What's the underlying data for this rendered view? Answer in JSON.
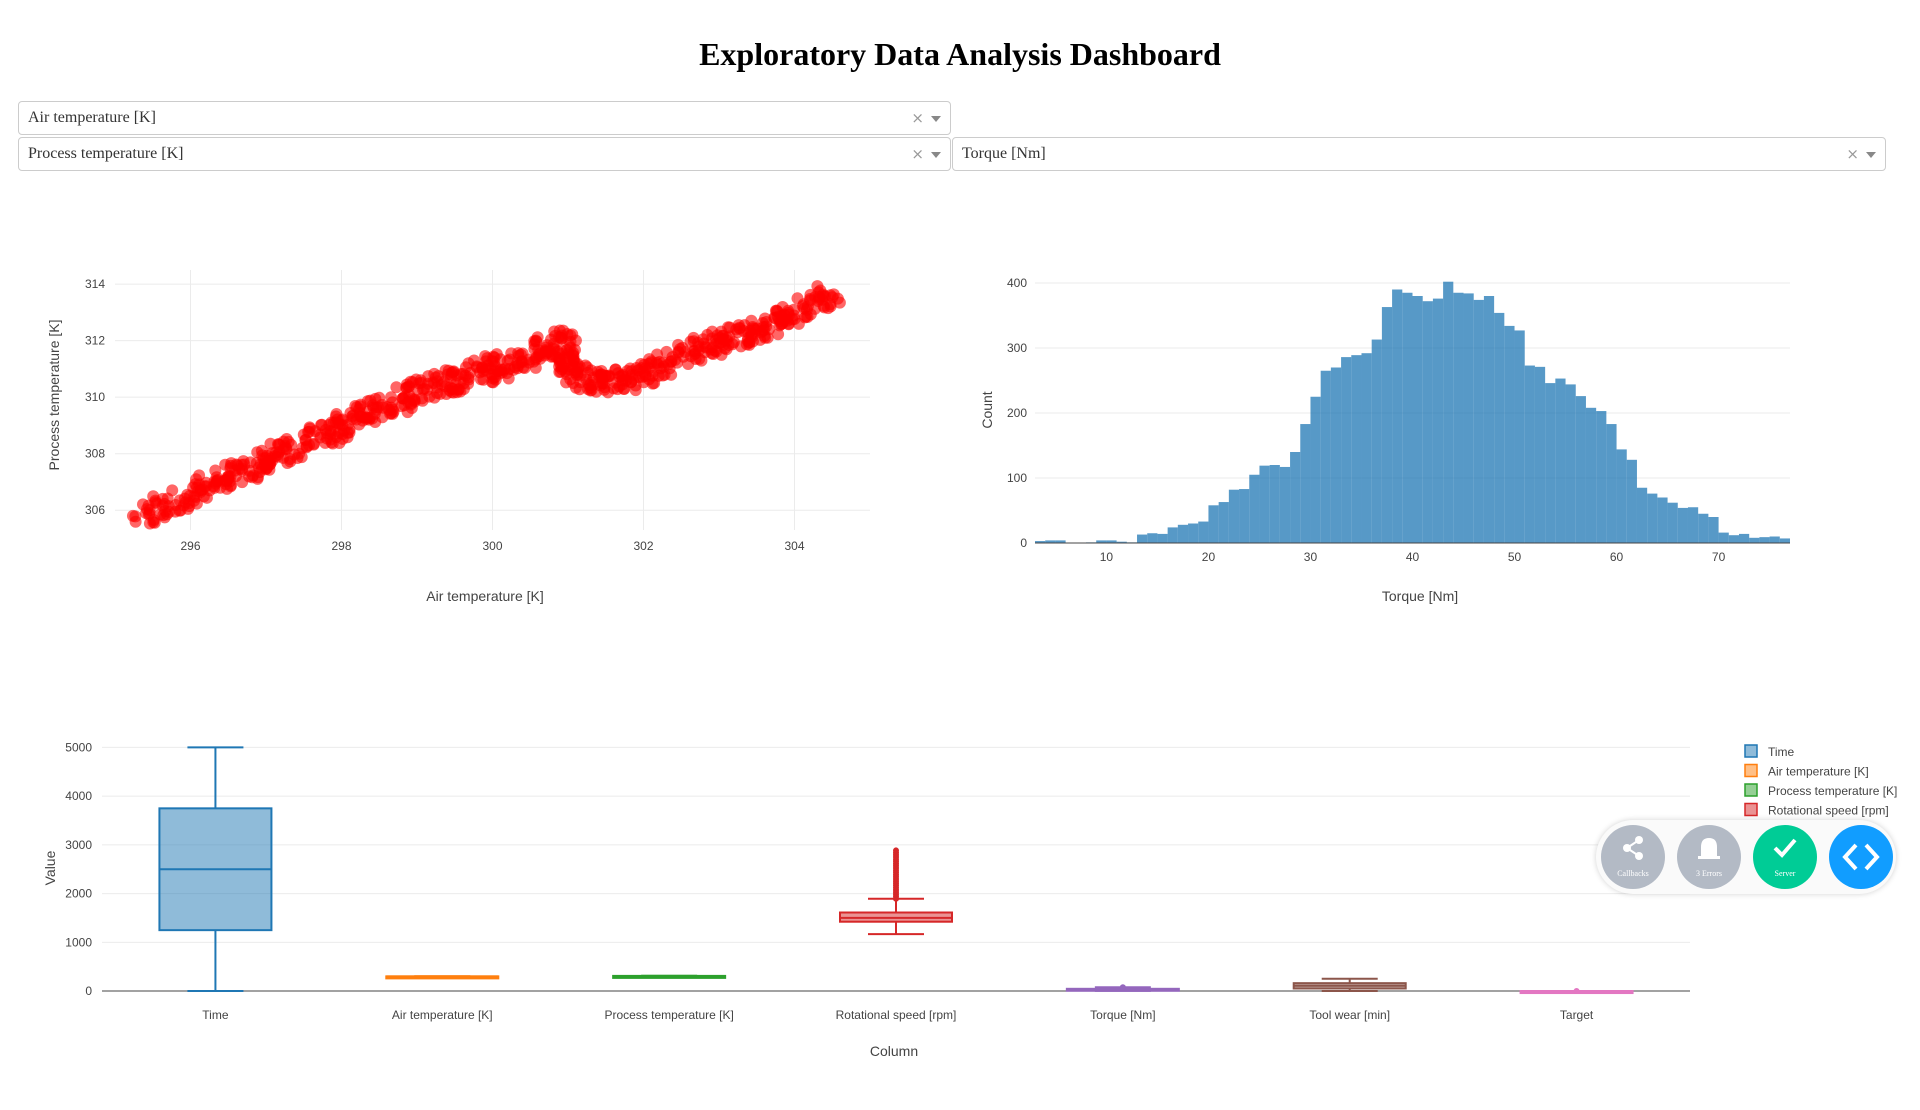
{
  "title": "Exploratory Data Analysis Dashboard",
  "dropdowns": {
    "x_select": {
      "value": "Air temperature [K]",
      "clear": "×"
    },
    "y_select": {
      "value": "Process temperature [K]",
      "clear": "×"
    },
    "hist_select": {
      "value": "Torque [Nm]",
      "clear": "×"
    }
  },
  "devtools": {
    "callbacks": "Callbacks",
    "errors": "3 Errors",
    "server": "Server"
  },
  "colors": {
    "scatter": "#ff0000",
    "hist": "#1f77b4",
    "grid": "#ebebeb"
  },
  "chart_data": [
    {
      "type": "scatter",
      "xlabel": "Air temperature [K]",
      "ylabel": "Process temperature [K]",
      "xlim": [
        295,
        305
      ],
      "ylim": [
        305.3,
        314.5
      ],
      "xticks": [
        296,
        298,
        300,
        302,
        304
      ],
      "yticks": [
        306,
        308,
        310,
        312,
        314
      ],
      "color": "#ff0000",
      "trend_points": [
        [
          295.3,
          305.7
        ],
        [
          296.0,
          306.5
        ],
        [
          296.5,
          307.2
        ],
        [
          297.0,
          307.8
        ],
        [
          297.5,
          308.4
        ],
        [
          298.0,
          309.0
        ],
        [
          298.5,
          309.6
        ],
        [
          299.0,
          310.2
        ],
        [
          299.5,
          310.6
        ],
        [
          300.0,
          311.0
        ],
        [
          300.5,
          311.5
        ],
        [
          301.0,
          312.0
        ],
        [
          301.0,
          310.8
        ],
        [
          301.5,
          310.5
        ],
        [
          302.0,
          310.7
        ],
        [
          302.5,
          311.5
        ],
        [
          303.0,
          312.0
        ],
        [
          303.5,
          312.3
        ],
        [
          304.0,
          313.0
        ],
        [
          304.5,
          313.7
        ]
      ]
    },
    {
      "type": "bar",
      "xlabel": "Torque [Nm]",
      "ylabel": "Count",
      "xlim": [
        3,
        77
      ],
      "ylim": [
        0,
        420
      ],
      "xticks": [
        10,
        20,
        30,
        40,
        50,
        60,
        70
      ],
      "yticks": [
        0,
        100,
        200,
        300,
        400
      ],
      "bin_width": 1,
      "bin_start": 3,
      "values": [
        3,
        4,
        4,
        0,
        0,
        1,
        4,
        4,
        2,
        1,
        13,
        15,
        14,
        24,
        28,
        30,
        33,
        58,
        63,
        82,
        83,
        105,
        119,
        120,
        117,
        140,
        183,
        225,
        265,
        270,
        286,
        289,
        292,
        313,
        363,
        390,
        385,
        380,
        372,
        376,
        402,
        385,
        384,
        374,
        380,
        354,
        334,
        327,
        273,
        271,
        246,
        253,
        244,
        226,
        208,
        203,
        183,
        144,
        128,
        85,
        76,
        70,
        62,
        54,
        55,
        45,
        40,
        16,
        12,
        14,
        8,
        9,
        10,
        7
      ]
    },
    {
      "type": "box",
      "xlabel": "Column",
      "ylabel": "Value",
      "ylim": [
        -40,
        5050
      ],
      "yticks": [
        0,
        1000,
        2000,
        3000,
        4000,
        5000
      ],
      "categories": [
        "Time",
        "Air temperature [K]",
        "Process temperature [K]",
        "Rotational speed [rpm]",
        "Torque [Nm]",
        "Tool wear [min]",
        "Target"
      ],
      "series": [
        {
          "name": "Time",
          "color": "#1f77b4",
          "min": 0,
          "q1": 1250,
          "median": 2500,
          "q3": 3750,
          "max": 5000
        },
        {
          "name": "Air temperature [K]",
          "color": "#ff7f0e",
          "min": 295,
          "q1": 298,
          "median": 300,
          "q3": 301,
          "max": 304
        },
        {
          "name": "Process temperature [K]",
          "color": "#2ca02c",
          "min": 305,
          "q1": 308,
          "median": 310,
          "q3": 311,
          "max": 314
        },
        {
          "name": "Rotational speed [rpm]",
          "color": "#d62728",
          "min": 1168,
          "q1": 1423,
          "median": 1503,
          "q3": 1612,
          "max": 1895,
          "outlier_max": 2886
        },
        {
          "name": "Torque [Nm]",
          "color": "#9467bd",
          "min": 3,
          "q1": 33,
          "median": 40,
          "q3": 46,
          "max": 77
        },
        {
          "name": "Tool wear [min]",
          "color": "#8c564b",
          "min": 0,
          "q1": 53,
          "median": 108,
          "q3": 162,
          "max": 253
        },
        {
          "name": "Target",
          "color": "#e377c2",
          "min": 0,
          "q1": 0,
          "median": 0,
          "q3": 0,
          "max": 1
        }
      ],
      "legend_position": "right"
    }
  ]
}
